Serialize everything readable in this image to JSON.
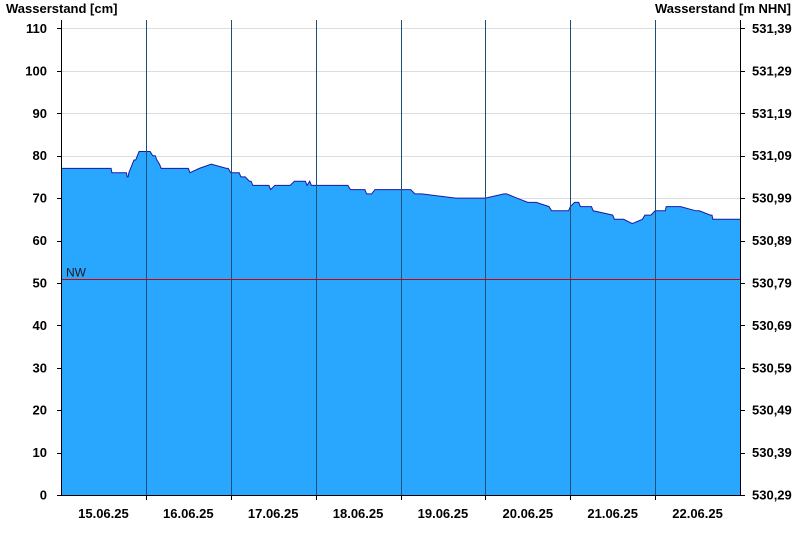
{
  "chart_data": {
    "type": "area",
    "title": "",
    "ylabel_left": "Wasserstand [cm]",
    "ylabel_right": "Wasserstand [m NHN]",
    "ylim": [
      0,
      112
    ],
    "left_ticks": [
      0,
      10,
      20,
      30,
      40,
      50,
      60,
      70,
      80,
      90,
      100,
      110
    ],
    "right_ticks": [
      "530,29",
      "530,39",
      "530,49",
      "530,59",
      "530,69",
      "530,79",
      "530,89",
      "530,99",
      "531,09",
      "531,19",
      "531,29",
      "531,39"
    ],
    "x_range_days": [
      0,
      8
    ],
    "x_ticks": [
      "15.06.25",
      "16.06.25",
      "17.06.25",
      "18.06.25",
      "19.06.25",
      "20.06.25",
      "21.06.25",
      "22.06.25"
    ],
    "day_boundaries": [
      1,
      2,
      3,
      4,
      5,
      6,
      7
    ],
    "grid": true,
    "reference_lines": [
      {
        "label": "NW",
        "value": 51,
        "color": "#cc0000"
      }
    ],
    "fill_color": "#29a7ff",
    "line_color": "#1a1aa0",
    "series": [
      {
        "x": [
          0,
          0.59,
          0.6,
          0.77,
          0.78,
          0.79,
          0.8,
          0.82,
          0.84,
          0.86,
          0.88,
          0.9,
          0.92,
          0.95,
          1.05,
          1.08,
          1.11,
          1.13,
          1.16,
          1.18,
          1.2,
          1.21,
          1.5,
          1.52,
          1.63,
          1.77,
          1.95,
          1.97,
          2.0,
          2.1,
          2.12,
          2.17,
          2.22,
          2.24,
          2.26,
          2.45,
          2.47,
          2.52,
          2.55,
          2.6,
          2.7,
          2.75,
          2.88,
          2.9,
          2.93,
          2.95,
          3.38,
          3.41,
          3.46,
          3.5,
          3.58,
          3.6,
          3.66,
          3.7,
          3.76,
          3.78,
          3.95,
          4.0,
          4.12,
          4.17,
          4.25,
          4.65,
          4.7,
          4.83,
          5.0,
          5.22,
          5.25,
          5.37,
          5.5,
          5.6,
          5.75,
          5.78,
          5.98,
          6.0,
          6.05,
          6.1,
          6.12,
          6.25,
          6.27,
          6.5,
          6.52,
          6.63,
          6.73,
          6.85,
          6.88,
          6.95,
          7.0,
          7.1,
          7.12,
          7.13,
          7.3,
          7.48,
          7.52,
          7.65,
          7.67,
          7.68,
          7.9,
          7.92,
          8.0
        ],
        "y": [
          77,
          77,
          76,
          76,
          75,
          75,
          76,
          77,
          78,
          79,
          79,
          80,
          81,
          81,
          81,
          80,
          80,
          79,
          78,
          77,
          77,
          77,
          77,
          76,
          77,
          78,
          77,
          77,
          76,
          76,
          75,
          75,
          74,
          74,
          73,
          73,
          72,
          73,
          73,
          73,
          73,
          74,
          74,
          73,
          74,
          73,
          73,
          72,
          72,
          72,
          72,
          71,
          71,
          72,
          72,
          72,
          72,
          72,
          72,
          71,
          71,
          70,
          70,
          70,
          70,
          71,
          71,
          70,
          69,
          69,
          68,
          67,
          67,
          68,
          69,
          69,
          68,
          68,
          67,
          66,
          65,
          65,
          64,
          65,
          66,
          66,
          67,
          67,
          67,
          68,
          68,
          67,
          67,
          66,
          66,
          65,
          65,
          65,
          65
        ]
      }
    ]
  }
}
